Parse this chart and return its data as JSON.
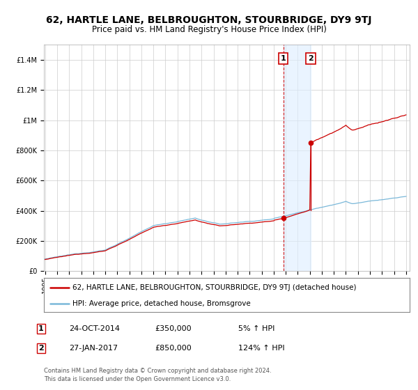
{
  "title": "62, HARTLE LANE, BELBROUGHTON, STOURBRIDGE, DY9 9TJ",
  "subtitle": "Price paid vs. HM Land Registry's House Price Index (HPI)",
  "x_start_year": 1995,
  "x_end_year": 2025,
  "y_min": 0,
  "y_max": 1500000,
  "y_ticks": [
    0,
    200000,
    400000,
    600000,
    800000,
    1000000,
    1200000,
    1400000
  ],
  "y_tick_labels": [
    "£0",
    "£200K",
    "£400K",
    "£600K",
    "£800K",
    "£1M",
    "£1.2M",
    "£1.4M"
  ],
  "hpi_color": "#7ab8d9",
  "price_color": "#cc0000",
  "grid_color": "#cccccc",
  "bg_color": "#ffffff",
  "sale1_date": 2014.81,
  "sale1_price": 350000,
  "sale2_date": 2017.07,
  "sale2_price": 850000,
  "sale1_label": "1",
  "sale2_label": "2",
  "highlight_color": "#ddeeff",
  "vline_color": "#cc0000",
  "legend_line1": "62, HARTLE LANE, BELBROUGHTON, STOURBRIDGE, DY9 9TJ (detached house)",
  "legend_line2": "HPI: Average price, detached house, Bromsgrove",
  "table_row1": [
    "1",
    "24-OCT-2014",
    "£350,000",
    "5% ↑ HPI"
  ],
  "table_row2": [
    "2",
    "27-JAN-2017",
    "£850,000",
    "124% ↑ HPI"
  ],
  "footnote": "Contains HM Land Registry data © Crown copyright and database right 2024.\nThis data is licensed under the Open Government Licence v3.0.",
  "title_fontsize": 10,
  "subtitle_fontsize": 8.5,
  "tick_fontsize": 7,
  "legend_fontsize": 7.5,
  "table_fontsize": 8,
  "footnote_fontsize": 6
}
